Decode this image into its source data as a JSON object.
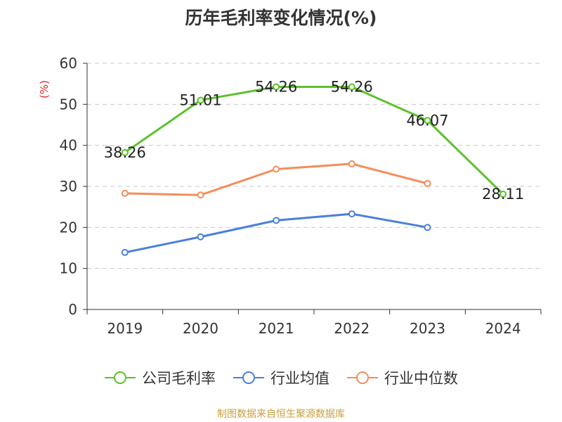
{
  "title": "历年毛利率变化情况(%)",
  "source": "制图数据来自恒生聚源数据库",
  "colors": {
    "company": "#5CC12A",
    "industry_avg": "#4A7FDB",
    "industry_median": "#F48D5A",
    "axis": "#333333",
    "grid": "#C8C8C8",
    "ylabel": "#E02020"
  },
  "chart_data": {
    "type": "line",
    "title": "历年毛利率变化情况(%)",
    "ylabel": "(%)",
    "xlabel": "",
    "categories": [
      "2019",
      "2020",
      "2021",
      "2022",
      "2023",
      "2024"
    ],
    "ylim": [
      0,
      60
    ],
    "yticks": [
      "0",
      "10",
      "20",
      "30",
      "40",
      "50",
      "60"
    ],
    "grid": true,
    "legend_position": "bottom",
    "series": [
      {
        "name": "公司毛利率",
        "color": "#5CC12A",
        "values": [
          38.26,
          51.01,
          54.26,
          54.26,
          46.07,
          28.11
        ],
        "labels": [
          "38.26",
          "51.01",
          "54.26",
          "54.26",
          "46.07",
          "28.11"
        ]
      },
      {
        "name": "行业均值",
        "color": "#4A7FDB",
        "values": [
          13.9,
          17.7,
          21.7,
          23.3,
          20.0,
          null
        ]
      },
      {
        "name": "行业中位数",
        "color": "#F48D5A",
        "values": [
          28.3,
          27.9,
          34.2,
          35.5,
          30.7,
          null
        ]
      }
    ]
  }
}
